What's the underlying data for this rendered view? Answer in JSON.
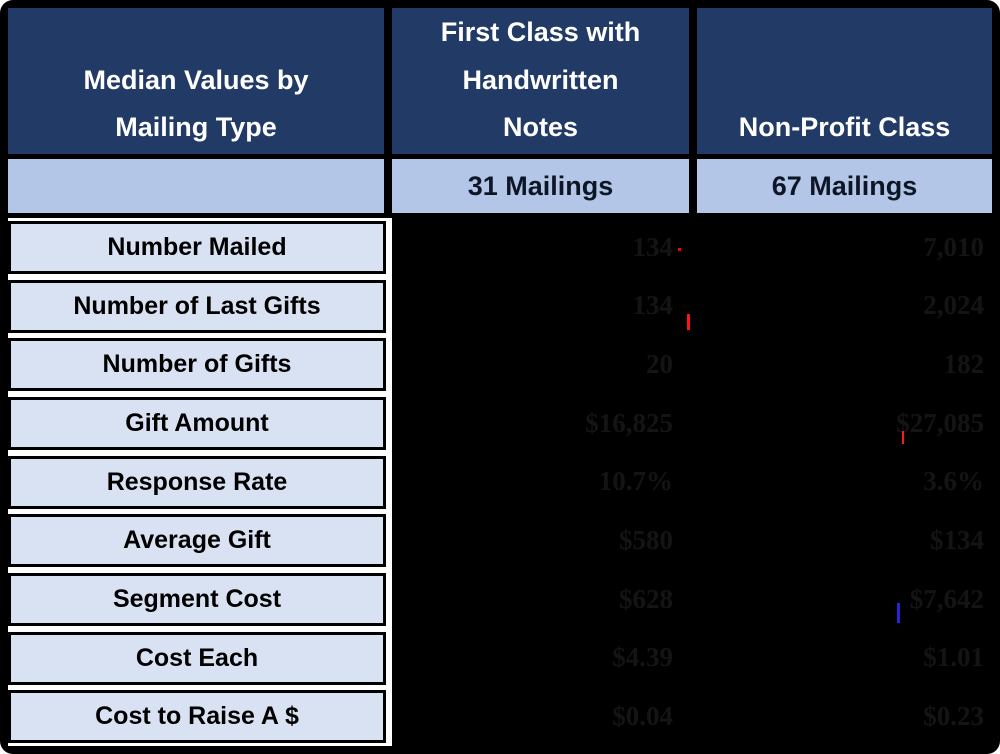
{
  "chart_data": {
    "type": "table",
    "title": "Median Values by Mailing Type",
    "header": {
      "col1": "Median Values by\nMailing Type",
      "col2": "First Class with\nHandwritten\nNotes",
      "col3": "Non-Profit Class"
    },
    "subheader": {
      "col2_mailings": "31 Mailings",
      "col3_mailings": "67 Mailings"
    },
    "rows": [
      {
        "label": "Number Mailed",
        "first_class": "134",
        "non_profit": "7,010"
      },
      {
        "label": "Number of Last Gifts",
        "first_class": "134",
        "non_profit": "2,024"
      },
      {
        "label": "Number of Gifts",
        "first_class": "20",
        "non_profit": "182"
      },
      {
        "label": "Gift Amount",
        "first_class": "$16,825",
        "non_profit": "$27,085"
      },
      {
        "label": "Response Rate",
        "first_class": "10.7%",
        "non_profit": "3.6%"
      },
      {
        "label": "Average Gift",
        "first_class": "$580",
        "non_profit": "$134"
      },
      {
        "label": "Segment Cost",
        "first_class": "$628",
        "non_profit": "$7,642"
      },
      {
        "label": "Cost Each",
        "first_class": "$4.39",
        "non_profit": "$1.01"
      },
      {
        "label": "Cost to Raise A $",
        "first_class": "$0.04",
        "non_profit": "$0.23"
      }
    ]
  },
  "colors": {
    "header_bg": "#213A66",
    "header_text": "#ffffff",
    "subheader_bg": "#B4C6E7",
    "label_bg": "#D9E2F3",
    "data_bg": "#000000",
    "data_text": "#141414",
    "border": "#000000",
    "artifact_red": "#ff0000",
    "artifact_blue": "#2626d8"
  }
}
